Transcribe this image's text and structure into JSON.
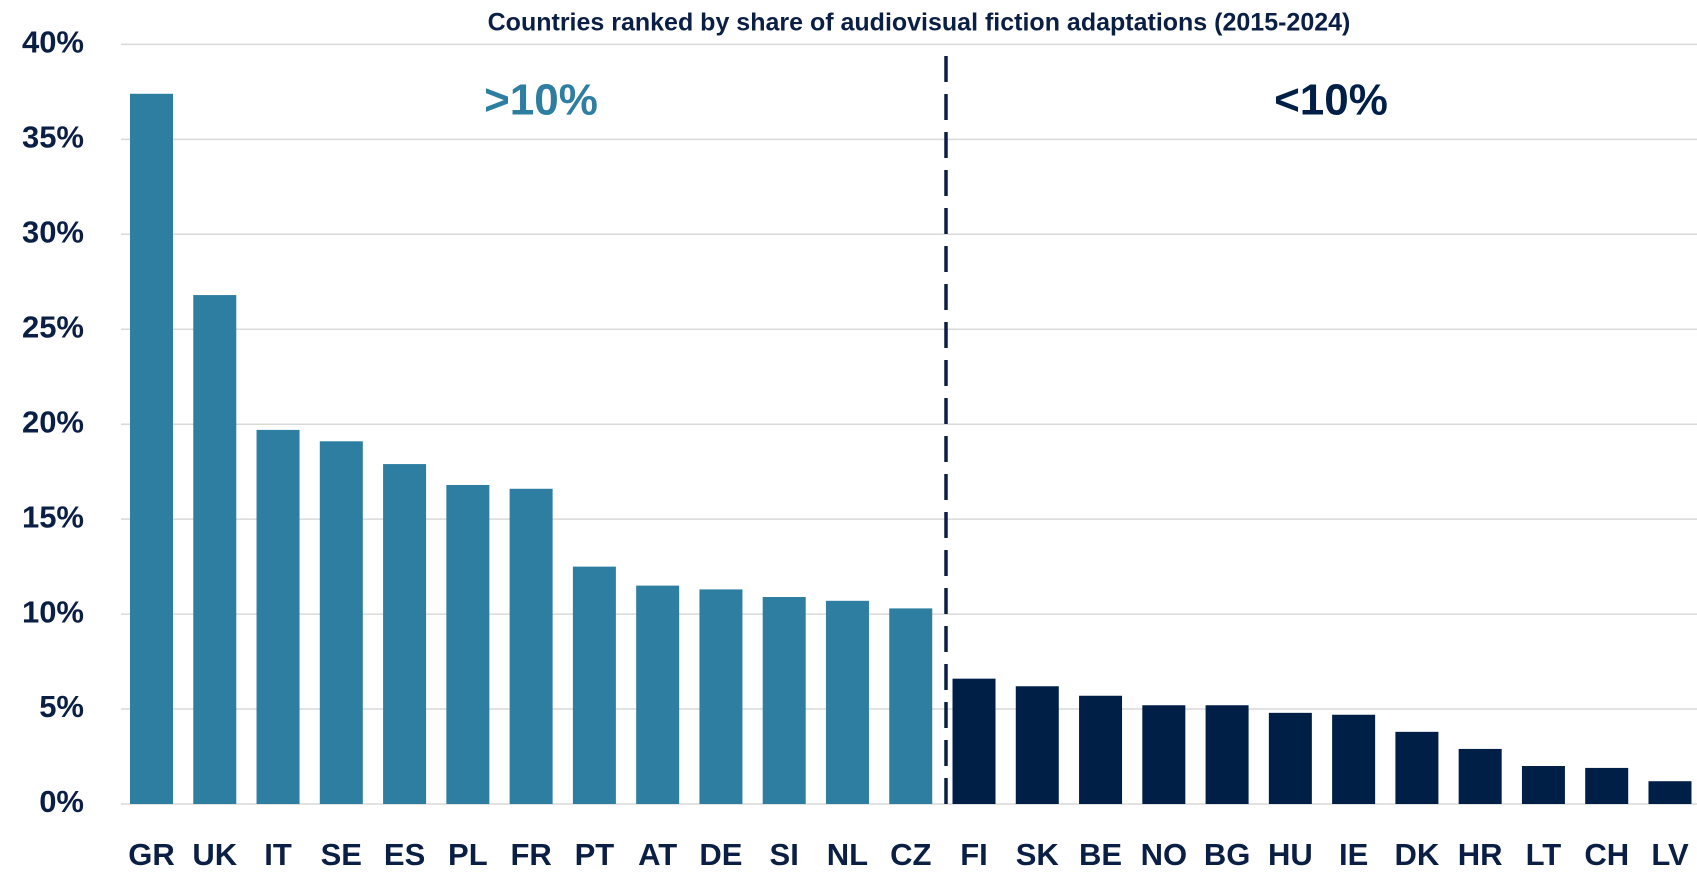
{
  "chart_data": {
    "type": "bar",
    "title": "Countries ranked by share of audiovisual fiction adaptations (2015-2024)",
    "categories": [
      "GR",
      "UK",
      "IT",
      "SE",
      "ES",
      "PL",
      "FR",
      "PT",
      "AT",
      "DE",
      "SI",
      "NL",
      "CZ",
      "FI",
      "SK",
      "BE",
      "NO",
      "BG",
      "HU",
      "IE",
      "DK",
      "HR",
      "LT",
      "CH",
      "LV"
    ],
    "values": [
      37.4,
      26.8,
      19.7,
      19.1,
      17.9,
      16.8,
      16.6,
      12.5,
      11.5,
      11.3,
      10.9,
      10.7,
      10.3,
      6.6,
      6.2,
      5.7,
      5.2,
      5.2,
      4.8,
      4.7,
      3.8,
      2.9,
      2.0,
      1.9,
      1.2
    ],
    "colors": [
      "#2e7ea1",
      "#2e7ea1",
      "#2e7ea1",
      "#2e7ea1",
      "#2e7ea1",
      "#2e7ea1",
      "#2e7ea1",
      "#2e7ea1",
      "#2e7ea1",
      "#2e7ea1",
      "#2e7ea1",
      "#2e7ea1",
      "#2e7ea1",
      "#001f47",
      "#001f47",
      "#001f47",
      "#001f47",
      "#001f47",
      "#001f47",
      "#001f47",
      "#001f47",
      "#001f47",
      "#001f47",
      "#001f47",
      "#001f47"
    ],
    "ylim": [
      0,
      40
    ],
    "yticks": [
      {
        "value": 0,
        "label": "0%"
      },
      {
        "value": 5,
        "label": "5%"
      },
      {
        "value": 10,
        "label": "10%"
      },
      {
        "value": 15,
        "label": "15%"
      },
      {
        "value": 20,
        "label": "20%"
      },
      {
        "value": 25,
        "label": "25%"
      },
      {
        "value": 30,
        "label": "30%"
      },
      {
        "value": 35,
        "label": "35%"
      },
      {
        "value": 40,
        "label": "40%"
      }
    ],
    "grid": true,
    "annotations": [
      {
        "text": ">10%",
        "color": "#2e7ea1"
      },
      {
        "text": "<10%",
        "color": "#001f47"
      }
    ]
  }
}
